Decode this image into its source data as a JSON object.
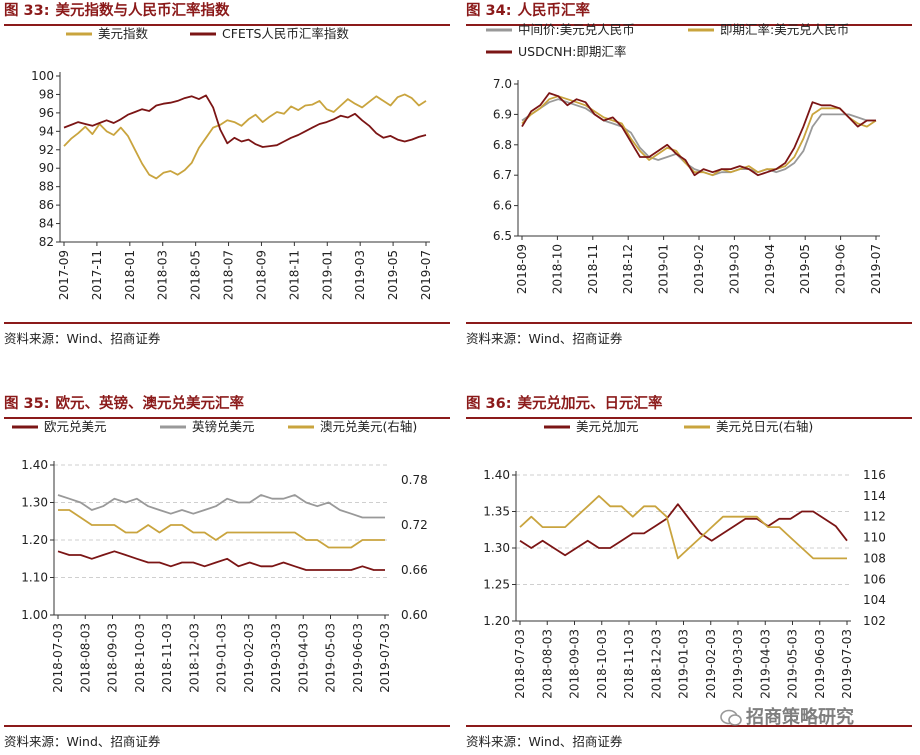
{
  "panels": [
    {
      "title_num": "图 33:",
      "title": "美元指数与人民币汇率指数",
      "source": "资料来源：Wind、招商证券",
      "chart_data": {
        "type": "line",
        "x_ticks": [
          "2017-09",
          "2017-11",
          "2018-01",
          "2018-03",
          "2018-05",
          "2018-07",
          "2018-09",
          "2018-11",
          "2019-01",
          "2019-03",
          "2019-05",
          "2019-07"
        ],
        "ylim": [
          82,
          100
        ],
        "y_ticks": [
          82,
          84,
          86,
          88,
          90,
          92,
          94,
          96,
          98,
          100
        ],
        "grid": false,
        "legend": "top",
        "series": [
          {
            "name": "美元指数",
            "color": "#c9a43e",
            "values": [
              92.4,
              93.2,
              93.8,
              94.5,
              93.7,
              94.8,
              94.0,
              93.6,
              94.4,
              93.5,
              92.0,
              90.5,
              89.3,
              88.9,
              89.5,
              89.7,
              89.3,
              89.8,
              90.6,
              92.2,
              93.3,
              94.4,
              94.7,
              95.2,
              95.0,
              94.6,
              95.3,
              95.8,
              95.0,
              95.6,
              96.1,
              95.9,
              96.7,
              96.3,
              96.8,
              96.9,
              97.3,
              96.4,
              96.1,
              96.8,
              97.5,
              97.0,
              96.6,
              97.2,
              97.8,
              97.3,
              96.8,
              97.7,
              98.0,
              97.6,
              96.8,
              97.3
            ]
          },
          {
            "name": "CFETS人民币汇率指数",
            "color": "#7b1515",
            "values": [
              94.4,
              94.7,
              95.0,
              94.8,
              94.6,
              94.9,
              95.2,
              94.9,
              95.3,
              95.8,
              96.1,
              96.4,
              96.2,
              96.8,
              97.0,
              97.1,
              97.3,
              97.6,
              97.8,
              97.5,
              97.9,
              96.6,
              94.2,
              92.7,
              93.3,
              92.9,
              93.1,
              92.6,
              92.3,
              92.4,
              92.5,
              92.9,
              93.3,
              93.6,
              94.0,
              94.4,
              94.8,
              95.0,
              95.3,
              95.7,
              95.5,
              95.9,
              95.2,
              94.6,
              93.8,
              93.3,
              93.5,
              93.1,
              92.9,
              93.1,
              93.4,
              93.6
            ]
          }
        ]
      }
    },
    {
      "title_num": "图 34:",
      "title": "人民币汇率",
      "source": "资料来源：Wind、招商证券",
      "chart_data": {
        "type": "line",
        "x_ticks": [
          "2018-09",
          "2018-10",
          "2018-11",
          "2018-12",
          "2019-01",
          "2019-02",
          "2019-03",
          "2019-04",
          "2019-05",
          "2019-06",
          "2019-07"
        ],
        "ylim": [
          6.5,
          7.0
        ],
        "y_ticks": [
          6.5,
          6.6,
          6.7,
          6.8,
          6.9,
          7.0
        ],
        "grid": false,
        "legend": "top",
        "series": [
          {
            "name": "中间价:美元兑人民币",
            "color": "#999999",
            "values": [
              6.88,
              6.9,
              6.92,
              6.94,
              6.95,
              6.94,
              6.93,
              6.92,
              6.9,
              6.88,
              6.87,
              6.86,
              6.84,
              6.79,
              6.76,
              6.75,
              6.76,
              6.77,
              6.74,
              6.72,
              6.71,
              6.7,
              6.71,
              6.71,
              6.72,
              6.72,
              6.71,
              6.72,
              6.71,
              6.72,
              6.74,
              6.78,
              6.86,
              6.9,
              6.9,
              6.9,
              6.9,
              6.89,
              6.88,
              6.88
            ]
          },
          {
            "name": "即期汇率:美元兑人民币",
            "color": "#c9a43e",
            "values": [
              6.87,
              6.9,
              6.92,
              6.95,
              6.96,
              6.95,
              6.94,
              6.93,
              6.91,
              6.89,
              6.88,
              6.87,
              6.82,
              6.78,
              6.75,
              6.77,
              6.79,
              6.78,
              6.74,
              6.71,
              6.71,
              6.7,
              6.72,
              6.71,
              6.72,
              6.73,
              6.71,
              6.72,
              6.72,
              6.73,
              6.76,
              6.82,
              6.9,
              6.92,
              6.92,
              6.92,
              6.89,
              6.87,
              6.86,
              6.88
            ]
          },
          {
            "name": "USDCNH:即期汇率",
            "color": "#7b1515",
            "values": [
              6.86,
              6.91,
              6.93,
              6.97,
              6.96,
              6.93,
              6.95,
              6.94,
              6.9,
              6.88,
              6.89,
              6.86,
              6.81,
              6.76,
              6.76,
              6.78,
              6.8,
              6.77,
              6.75,
              6.7,
              6.72,
              6.71,
              6.72,
              6.72,
              6.73,
              6.72,
              6.7,
              6.71,
              6.72,
              6.74,
              6.79,
              6.86,
              6.94,
              6.93,
              6.93,
              6.92,
              6.89,
              6.86,
              6.88,
              6.88
            ]
          }
        ]
      }
    },
    {
      "title_num": "图 35:",
      "title": "欧元、英镑、澳元兑美元汇率",
      "source": "资料来源：Wind、招商证券",
      "chart_data": {
        "type": "line",
        "x_ticks": [
          "2018-07-03",
          "2018-08-03",
          "2018-09-03",
          "2018-10-03",
          "2018-11-03",
          "2018-12-03",
          "2019-01-03",
          "2019-02-03",
          "2019-03-03",
          "2019-04-03",
          "2019-05-03",
          "2019-06-03",
          "2019-07-03"
        ],
        "ylim": [
          1.0,
          1.4
        ],
        "y_ticks": [
          1.0,
          1.1,
          1.2,
          1.3,
          1.4
        ],
        "y2lim": [
          0.6,
          0.8
        ],
        "y2_ticks": [
          0.6,
          0.66,
          0.72,
          0.78
        ],
        "grid": true,
        "legend": "top",
        "series": [
          {
            "name": "欧元兑美元",
            "color": "#7b1515",
            "axis": "left",
            "values": [
              1.17,
              1.16,
              1.16,
              1.15,
              1.16,
              1.17,
              1.16,
              1.15,
              1.14,
              1.14,
              1.13,
              1.14,
              1.14,
              1.13,
              1.14,
              1.15,
              1.13,
              1.14,
              1.13,
              1.13,
              1.14,
              1.13,
              1.12,
              1.12,
              1.12,
              1.12,
              1.12,
              1.13,
              1.12,
              1.12
            ]
          },
          {
            "name": "英镑兑美元",
            "color": "#999999",
            "axis": "left",
            "values": [
              1.32,
              1.31,
              1.3,
              1.28,
              1.29,
              1.31,
              1.3,
              1.31,
              1.29,
              1.28,
              1.27,
              1.28,
              1.27,
              1.28,
              1.29,
              1.31,
              1.3,
              1.3,
              1.32,
              1.31,
              1.31,
              1.32,
              1.3,
              1.29,
              1.3,
              1.28,
              1.27,
              1.26,
              1.26,
              1.26
            ]
          },
          {
            "name": "澳元兑美元(右轴)",
            "color": "#c9a43e",
            "axis": "right",
            "values": [
              0.74,
              0.74,
              0.73,
              0.72,
              0.72,
              0.72,
              0.71,
              0.71,
              0.72,
              0.71,
              0.72,
              0.72,
              0.71,
              0.71,
              0.7,
              0.71,
              0.71,
              0.71,
              0.71,
              0.71,
              0.71,
              0.71,
              0.7,
              0.7,
              0.69,
              0.69,
              0.69,
              0.7,
              0.7,
              0.7
            ]
          }
        ]
      }
    },
    {
      "title_num": "图 36:",
      "title": "美元兑加元、日元汇率",
      "source": "资料来源：Wind、招商证券",
      "chart_data": {
        "type": "line",
        "x_ticks": [
          "2018-07-03",
          "2018-08-03",
          "2018-09-03",
          "2018-10-03",
          "2018-11-03",
          "2018-12-03",
          "2019-01-03",
          "2019-02-03",
          "2019-03-03",
          "2019-04-03",
          "2019-05-03",
          "2019-06-03",
          "2019-07-03"
        ],
        "ylim": [
          1.2,
          1.4
        ],
        "y_ticks": [
          1.2,
          1.25,
          1.3,
          1.35,
          1.4
        ],
        "y2lim": [
          102,
          116
        ],
        "y2_ticks": [
          102,
          104,
          106,
          108,
          110,
          112,
          114,
          116
        ],
        "grid": true,
        "legend": "top",
        "series": [
          {
            "name": "美元兑加元",
            "color": "#7b1515",
            "axis": "left",
            "values": [
              1.31,
              1.3,
              1.31,
              1.3,
              1.29,
              1.3,
              1.31,
              1.3,
              1.3,
              1.31,
              1.32,
              1.32,
              1.33,
              1.34,
              1.36,
              1.34,
              1.32,
              1.31,
              1.32,
              1.33,
              1.34,
              1.34,
              1.33,
              1.34,
              1.34,
              1.35,
              1.35,
              1.34,
              1.33,
              1.31
            ]
          },
          {
            "name": "美元兑日元(右轴)",
            "color": "#c9a43e",
            "axis": "right",
            "values": [
              111,
              112,
              111,
              111,
              111,
              112,
              113,
              114,
              113,
              113,
              112,
              113,
              113,
              112,
              108,
              109,
              110,
              111,
              112,
              112,
              112,
              112,
              111,
              111,
              110,
              109,
              108,
              108,
              108,
              108
            ]
          }
        ]
      }
    }
  ],
  "watermark": "招商策略研究"
}
